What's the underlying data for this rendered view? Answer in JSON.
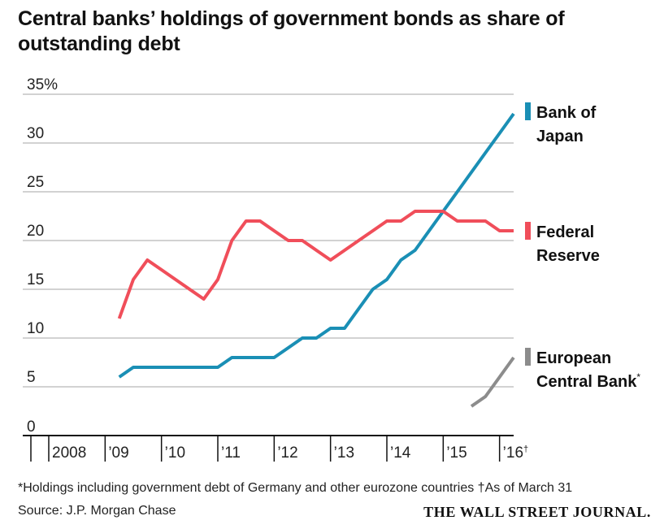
{
  "title": "Central banks’ holdings of government bonds as share of outstanding debt",
  "footnote": "*Holdings including government debt of Germany and other eurozone countries †As of March 31",
  "source": "Source: J.P. Morgan Chase",
  "brand": "THE WALL STREET JOURNAL.",
  "chart_data": {
    "type": "line",
    "title": "Central banks’ holdings of government bonds as share of outstanding debt",
    "xlabel": "",
    "ylabel": "",
    "ylim": [
      0,
      35
    ],
    "xlim": [
      2008.0,
      2016.25
    ],
    "y_ticks": [
      {
        "value": 0,
        "label": "0"
      },
      {
        "value": 5,
        "label": "5"
      },
      {
        "value": 10,
        "label": "10"
      },
      {
        "value": 15,
        "label": "15"
      },
      {
        "value": 20,
        "label": "20"
      },
      {
        "value": 25,
        "label": "25"
      },
      {
        "value": 30,
        "label": "30"
      },
      {
        "value": 35,
        "label": "35%"
      }
    ],
    "x_ticks": [
      {
        "value": 2008,
        "label": "2008"
      },
      {
        "value": 2009,
        "label": "’09"
      },
      {
        "value": 2010,
        "label": "’10"
      },
      {
        "value": 2011,
        "label": "’11"
      },
      {
        "value": 2012,
        "label": "’12"
      },
      {
        "value": 2013,
        "label": "’13"
      },
      {
        "value": 2014,
        "label": "’14"
      },
      {
        "value": 2015,
        "label": "’15"
      },
      {
        "value": 2016,
        "label": "’16"
      }
    ],
    "x_tick_suffix": "†",
    "grid": true,
    "series": [
      {
        "name": "Bank of Japan",
        "legend_lines": [
          "Bank of",
          "Japan"
        ],
        "color": "#1a8fb5",
        "x": [
          2009.25,
          2009.5,
          2009.75,
          2010.0,
          2010.25,
          2010.5,
          2010.75,
          2011.0,
          2011.25,
          2011.5,
          2011.75,
          2012.0,
          2012.25,
          2012.5,
          2012.75,
          2013.0,
          2013.25,
          2013.5,
          2013.75,
          2014.0,
          2014.25,
          2014.5,
          2014.75,
          2015.0,
          2015.25,
          2015.5,
          2015.75,
          2016.0,
          2016.25
        ],
        "y": [
          6,
          7,
          7,
          7,
          7,
          7,
          7,
          7,
          8,
          8,
          8,
          8,
          9,
          10,
          10,
          11,
          11,
          13,
          15,
          16,
          18,
          19,
          21,
          23,
          25,
          27,
          29,
          31,
          33
        ]
      },
      {
        "name": "Federal Reserve",
        "legend_lines": [
          "Federal",
          "Reserve"
        ],
        "color": "#f04e5a",
        "x": [
          2009.25,
          2009.5,
          2009.75,
          2010.0,
          2010.25,
          2010.5,
          2010.75,
          2011.0,
          2011.25,
          2011.5,
          2011.75,
          2012.0,
          2012.25,
          2012.5,
          2012.75,
          2013.0,
          2013.25,
          2013.5,
          2013.75,
          2014.0,
          2014.25,
          2014.5,
          2014.75,
          2015.0,
          2015.25,
          2015.5,
          2015.75,
          2016.0,
          2016.25
        ],
        "y": [
          12,
          16,
          18,
          17,
          16,
          15,
          14,
          16,
          20,
          22,
          22,
          21,
          20,
          20,
          19,
          18,
          19,
          20,
          21,
          22,
          22,
          23,
          23,
          23,
          22,
          22,
          22,
          21,
          21
        ]
      },
      {
        "name": "European Central Bank*",
        "legend_lines": [
          "European",
          "Central Bank*"
        ],
        "color": "#8c8c8c",
        "x": [
          2015.5,
          2015.75,
          2016.0,
          2016.25
        ],
        "y": [
          3,
          4,
          6,
          8
        ]
      }
    ]
  }
}
